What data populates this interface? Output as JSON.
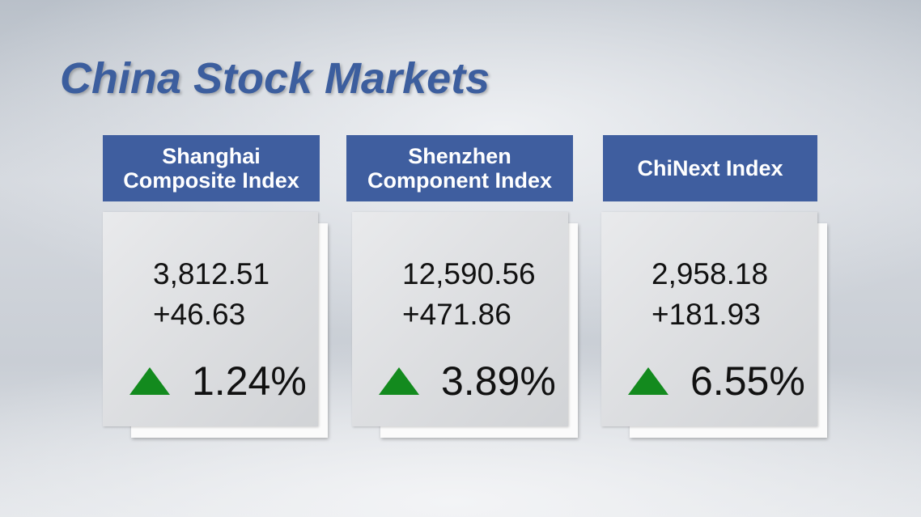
{
  "header": {
    "title": "China Stock Markets"
  },
  "cards": [
    {
      "name_lines": [
        "Shanghai",
        "Composite Index"
      ],
      "value": "3,812.51",
      "change": "+46.63",
      "percent": "1.24%"
    },
    {
      "name_lines": [
        "Shenzhen",
        "Component Index"
      ],
      "value": "12,590.56",
      "change": "+471.86",
      "percent": "3.89%"
    },
    {
      "name_lines": [
        "ChiNext Index"
      ],
      "value": "2,958.18",
      "change": "+181.93",
      "percent": "6.55%"
    }
  ]
}
